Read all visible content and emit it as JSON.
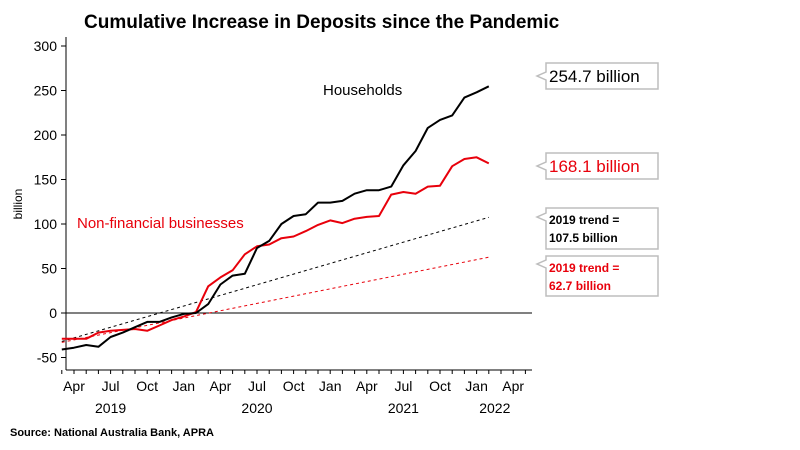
{
  "chart_data": {
    "type": "line",
    "title": "Cumulative Increase in Deposits since the Pandemic",
    "ylabel": "billion",
    "xlabel": "",
    "ylim": [
      -60,
      310
    ],
    "yticks": [
      300,
      250,
      200,
      150,
      100,
      50,
      0,
      -50
    ],
    "xlim": [
      "2019-03",
      "2022-05"
    ],
    "x_ticks": [
      {
        "label": "Apr",
        "date": "2019-04"
      },
      {
        "label": "Jul",
        "date": "2019-07"
      },
      {
        "label": "Oct",
        "date": "2019-10"
      },
      {
        "label": "Jan",
        "date": "2020-01"
      },
      {
        "label": "Apr",
        "date": "2020-04"
      },
      {
        "label": "Jul",
        "date": "2020-07"
      },
      {
        "label": "Oct",
        "date": "2020-10"
      },
      {
        "label": "Jan",
        "date": "2021-01"
      },
      {
        "label": "Apr",
        "date": "2021-04"
      },
      {
        "label": "Jul",
        "date": "2021-07"
      },
      {
        "label": "Oct",
        "date": "2021-10"
      },
      {
        "label": "Jan",
        "date": "2022-01"
      },
      {
        "label": "Apr",
        "date": "2022-04"
      }
    ],
    "year_labels": [
      {
        "label": "2019",
        "date": "2019-07"
      },
      {
        "label": "2020",
        "date": "2020-07"
      },
      {
        "label": "2021",
        "date": "2021-07"
      },
      {
        "label": "2022",
        "date": "2022-02"
      }
    ],
    "x": [
      "2019-03",
      "2019-04",
      "2019-05",
      "2019-06",
      "2019-07",
      "2019-08",
      "2019-09",
      "2019-10",
      "2019-11",
      "2019-12",
      "2020-01",
      "2020-02",
      "2020-03",
      "2020-04",
      "2020-05",
      "2020-06",
      "2020-07",
      "2020-08",
      "2020-09",
      "2020-10",
      "2020-11",
      "2020-12",
      "2021-01",
      "2021-02",
      "2021-03",
      "2021-04",
      "2021-05",
      "2021-06",
      "2021-07",
      "2021-08",
      "2021-09",
      "2021-10",
      "2021-11",
      "2021-12",
      "2022-01",
      "2022-02"
    ],
    "series": [
      {
        "name": "Households",
        "color": "#000000",
        "values": [
          -41,
          -39,
          -36,
          -38,
          -27,
          -22,
          -16,
          -10,
          -10,
          -5,
          -1,
          0,
          10,
          32,
          42,
          44,
          73,
          81,
          100,
          109,
          111,
          124,
          124,
          126,
          134,
          138,
          138,
          142,
          166,
          182,
          208,
          217,
          222,
          242,
          248,
          254.7
        ]
      },
      {
        "name": "Non-financial businesses",
        "color": "#e8000b",
        "values": [
          -29,
          -29,
          -29,
          -22,
          -20,
          -19,
          -18,
          -20,
          -14,
          -8,
          -4,
          1,
          30,
          40,
          48,
          66,
          75,
          77,
          84,
          86,
          92,
          99,
          104,
          101,
          106,
          108,
          109,
          133,
          136,
          134,
          142,
          143,
          165,
          173,
          175,
          168.1
        ]
      }
    ],
    "trend_lines": [
      {
        "name": "2019 trend",
        "color": "#000000",
        "style": "dashed",
        "start": {
          "x": "2019-03",
          "y": -32
        },
        "end": {
          "x": "2022-02",
          "y": 107.5
        }
      },
      {
        "name": "2019 trend",
        "color": "#e8000b",
        "style": "dashed",
        "start": {
          "x": "2019-03",
          "y": -33
        },
        "end": {
          "x": "2022-02",
          "y": 62.7
        }
      }
    ],
    "annotations": {
      "households_label": "Households",
      "businesses_label": "Non-financial businesses",
      "households_end": "254.7 billion",
      "businesses_end": "168.1 billion",
      "households_trend_line1": "2019 trend =",
      "households_trend_line2": "107.5 billion",
      "businesses_trend_line1": "2019 trend =",
      "businesses_trend_line2": "62.7 billion"
    },
    "source": "Source: National Australia Bank, APRA",
    "grid": false
  }
}
